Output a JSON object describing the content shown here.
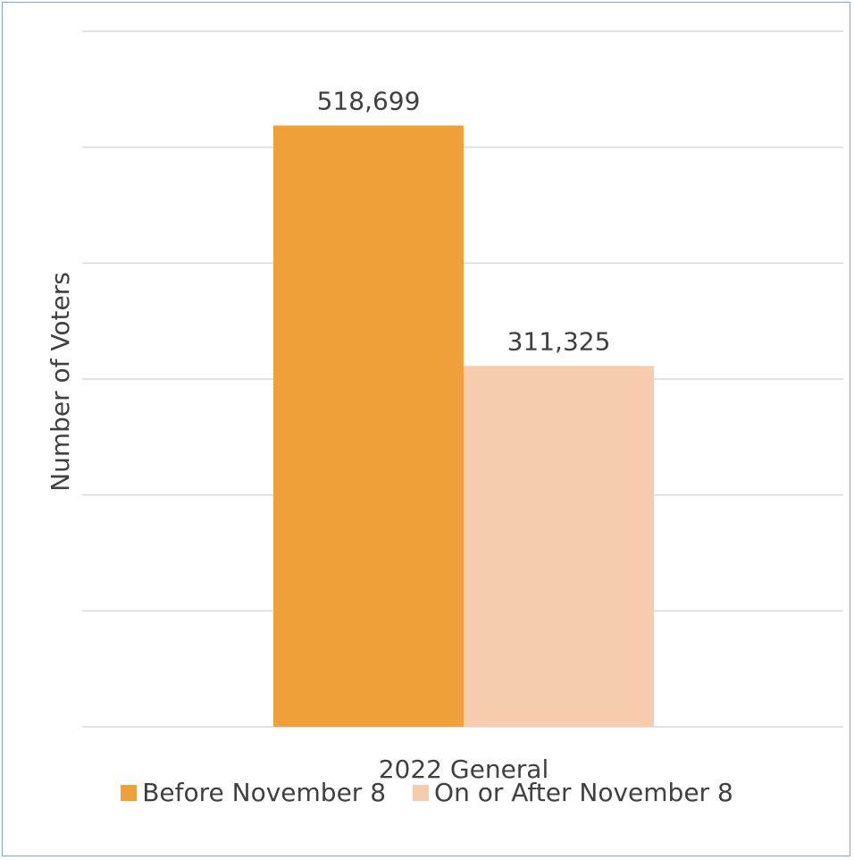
{
  "chart_data": {
    "type": "bar",
    "categories": [
      "2022 General"
    ],
    "series": [
      {
        "name": "Before November 8",
        "values": [
          518699
        ],
        "color": "#f0a03a",
        "label": "518,699"
      },
      {
        "name": "On or After November 8",
        "values": [
          311325
        ],
        "color": "#f7cbae",
        "label": "311,325"
      }
    ],
    "title": "",
    "xlabel": "",
    "ylabel": "Number of Voters",
    "ylim": [
      0,
      600000
    ],
    "grid": true,
    "legend": "bottom"
  }
}
